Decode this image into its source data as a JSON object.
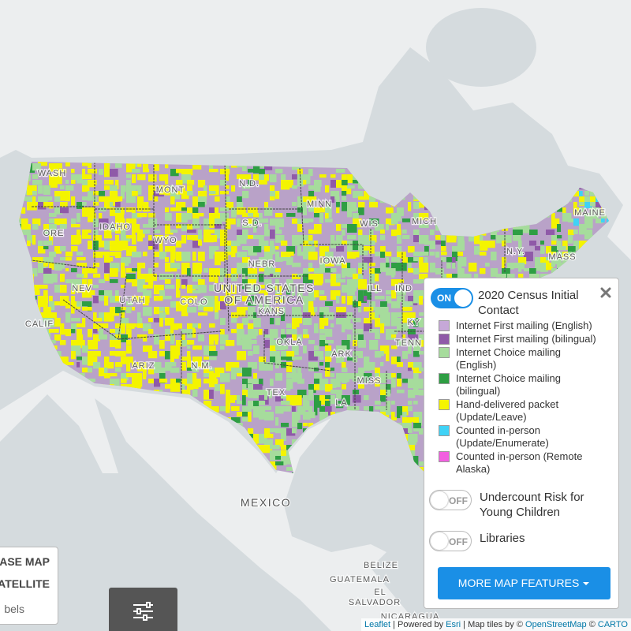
{
  "map_labels": {
    "states": [
      "WASH",
      "ORE",
      "IDAHO",
      "MONT",
      "WYO",
      "N.D.",
      "S.D.",
      "NEBR",
      "MINN",
      "IOWA",
      "WIS",
      "MICH",
      "ILL",
      "IND",
      "N.Y.",
      "MASS",
      "MAINE",
      "NEV",
      "UTAH",
      "COLO",
      "KANS",
      "CALIF",
      "ARIZ",
      "N.M.",
      "OKLA",
      "TEX",
      "ARK",
      "MISS",
      "LA",
      "TENN",
      "KY"
    ],
    "country": [
      "UNITED STATES",
      "OF AMERICA"
    ],
    "neighbors": [
      "MEXICO",
      "BELIZE",
      "GUATEMALA",
      "EL",
      "SALVADOR",
      "NICARAGUA"
    ]
  },
  "legend": {
    "toggle": "ON",
    "title": "2020 Census Initial Contact",
    "items": [
      {
        "label": "Internet First mailing (English)",
        "color": "#c6a8d8"
      },
      {
        "label": "Internet First mailing (bilingual)",
        "color": "#8f5aa8"
      },
      {
        "label": "Internet Choice mailing (English)",
        "color": "#a6dc9c"
      },
      {
        "label": "Internet Choice mailing (bilingual)",
        "color": "#2e9e43"
      },
      {
        "label": "Hand-delivered packet (Update/Leave)",
        "color": "#f4f400"
      },
      {
        "label": "Counted in-person (Update/Enumerate)",
        "color": "#3fd2f6"
      },
      {
        "label": "Counted in-person (Remote Alaska)",
        "color": "#f25fe0"
      }
    ],
    "layers": [
      {
        "toggle": "OFF",
        "label": "Undercount Risk for Young Children"
      },
      {
        "toggle": "OFF",
        "label": "Libraries"
      }
    ],
    "button": "MORE MAP FEATURES"
  },
  "basemap": {
    "options": [
      "ASE MAP",
      "ATELLITE",
      "bels"
    ]
  },
  "attribution": {
    "leaflet": "Leaflet",
    "powered": " | Powered by ",
    "esri": "Esri",
    "tiles": " | Map tiles by © ",
    "osm": "OpenStreetMap",
    "sep": " © ",
    "carto": "CARTO"
  }
}
